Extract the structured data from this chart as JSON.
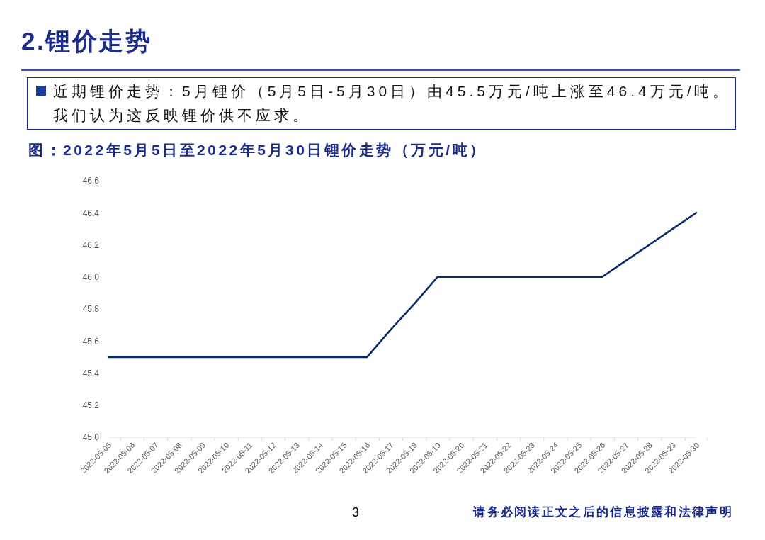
{
  "chart_data": {
    "type": "line",
    "title": "2.锂价走势",
    "subtitle": "近期锂价走势：5月锂价（5月5日-5月30日）由45.5万元/吨上涨至46.4万元/吨。我们认为这反映锂价供不应求。",
    "annotations": [
      "图：2022年5月5日至2022年5月30日锂价走势（万元/吨）",
      "3",
      "请务必阅读正文之后的信息披露和法律声明"
    ],
    "categories": [
      "2022-05-05",
      "2022-05-06",
      "2022-05-07",
      "2022-05-08",
      "2022-05-09",
      "2022-05-10",
      "2022-05-11",
      "2022-05-12",
      "2022-05-13",
      "2022-05-14",
      "2022-05-15",
      "2022-05-16",
      "2022-05-17",
      "2022-05-18",
      "2022-05-19",
      "2022-05-20",
      "2022-05-21",
      "2022-05-22",
      "2022-05-23",
      "2022-05-24",
      "2022-05-25",
      "2022-05-26",
      "2022-05-27",
      "2022-05-28",
      "2022-05-29",
      "2022-05-30"
    ],
    "values": [
      45.5,
      45.5,
      45.5,
      45.5,
      45.5,
      45.5,
      45.5,
      45.5,
      45.5,
      45.5,
      45.5,
      45.5,
      45.67,
      45.83,
      46.0,
      46.0,
      46.0,
      46.0,
      46.0,
      46.0,
      46.0,
      46.0,
      46.1,
      46.2,
      46.3,
      46.4
    ],
    "color": "#0b2a6a",
    "marker": "none",
    "line_style": "solid",
    "ylim": [
      45,
      46.6
    ],
    "yticks": [
      {
        "value": 45,
        "label": "45.0"
      },
      45.2,
      45.4,
      45.6,
      45.8,
      {
        "value": 46,
        "label": "46.0"
      },
      46.2,
      46.4,
      46.6
    ]
  }
}
